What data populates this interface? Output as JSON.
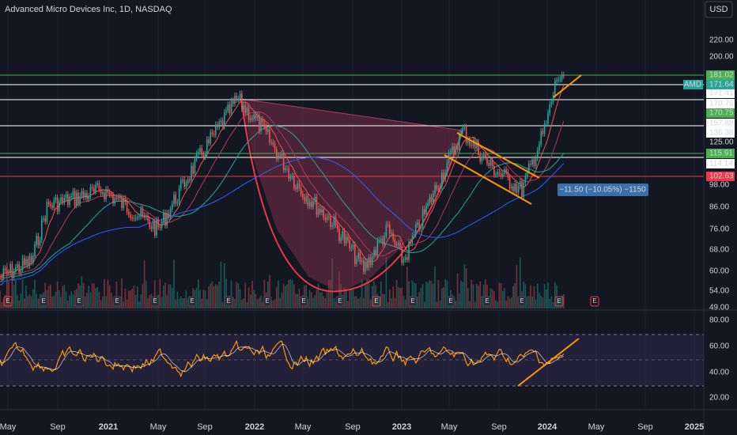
{
  "header": {
    "title": "Advanced Micro Devices Inc, 1D, NASDAQ",
    "currency": "USD",
    "symbol": "AMD"
  },
  "price_scale": [
    {
      "text": "220.00",
      "kind": "plain"
    },
    {
      "text": "200.00",
      "kind": "plain"
    },
    {
      "text": "181.02",
      "kind": "green"
    },
    {
      "text": "171.64",
      "kind": "teal"
    },
    {
      "text": "171.41",
      "kind": "white"
    },
    {
      "text": "170.76",
      "kind": "white"
    },
    {
      "text": "170.75",
      "kind": "green"
    },
    {
      "text": "157.88",
      "kind": "white"
    },
    {
      "text": "136.38",
      "kind": "white"
    },
    {
      "text": "125.00",
      "kind": "plain"
    },
    {
      "text": "115.91",
      "kind": "green"
    },
    {
      "text": "114.14",
      "kind": "white"
    },
    {
      "text": "102.63",
      "kind": "red"
    },
    {
      "text": "98.00",
      "kind": "plain"
    },
    {
      "text": "86.00",
      "kind": "plain"
    },
    {
      "text": "76.00",
      "kind": "plain"
    },
    {
      "text": "68.00",
      "kind": "plain"
    },
    {
      "text": "60.00",
      "kind": "plain"
    },
    {
      "text": "54.00",
      "kind": "plain"
    },
    {
      "text": "49.00",
      "kind": "plain"
    }
  ],
  "rsi_scale": [
    "80.00",
    "60.00",
    "40.00",
    "20.00"
  ],
  "time_axis": [
    "May",
    "Sep",
    "2021",
    "May",
    "Sep",
    "2022",
    "May",
    "Sep",
    "2023",
    "May",
    "Sep",
    "2024",
    "May",
    "Sep",
    "2025"
  ],
  "measure": "−11.50 (−10.05%) −1150",
  "event_marker": "E"
}
